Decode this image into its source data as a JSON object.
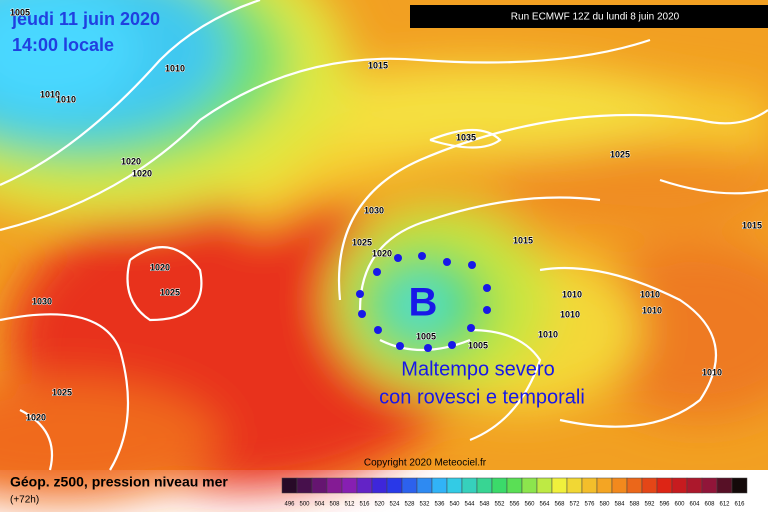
{
  "header": {
    "date": "jeudi 11 juin 2020",
    "time": "14:00 locale",
    "run": "Run ECMWF 12Z du lundi 8 juin 2020"
  },
  "map": {
    "low_symbol": "B",
    "annotation_line1": "Maltempo severo",
    "annotation_line2": "con rovesci e temporali",
    "copyright": "Copyright 2020 Meteociel.fr",
    "isobar_labels": [
      1005,
      1010,
      1010,
      1010,
      1015,
      1035,
      1025,
      1020,
      1020,
      1030,
      1025,
      1020,
      1015,
      1015,
      1020,
      1025,
      1030,
      1010,
      1010,
      1010,
      1010,
      1010,
      1005,
      1005,
      1010,
      1025,
      1020
    ]
  },
  "legend": {
    "title": "Géop. z500, pression niveau mer",
    "lead": "(+72h)",
    "scale": [
      496,
      500,
      504,
      508,
      512,
      516,
      520,
      524,
      528,
      532,
      536,
      540,
      544,
      548,
      552,
      556,
      560,
      564,
      568,
      572,
      576,
      580,
      584,
      588,
      592,
      596,
      600,
      604,
      608,
      612,
      616
    ]
  }
}
